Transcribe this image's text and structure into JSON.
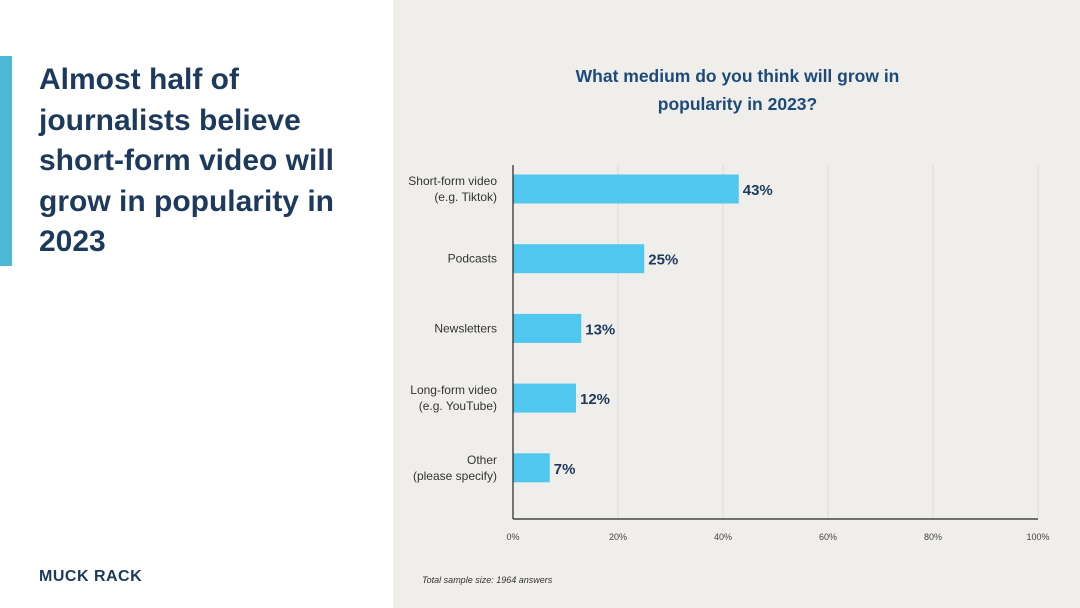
{
  "headline": "Almost half of journalists believe short-form video will grow in popularity in 2023",
  "logo": "MUCK RACK",
  "footnote": "Total sample size: 1964 answers",
  "colors": {
    "bar": "#4fc7ef",
    "accent": "#4cb8d4",
    "text": "#1d3a5c"
  },
  "chart_data": {
    "type": "bar",
    "orientation": "horizontal",
    "title": "What medium do you think will grow in popularity in 2023?",
    "categories": [
      [
        "Short-form video",
        "(e.g. Tiktok)"
      ],
      [
        "Podcasts"
      ],
      [
        "Newsletters"
      ],
      [
        "Long-form video",
        "(e.g. YouTube)"
      ],
      [
        "Other",
        "(please specify)"
      ]
    ],
    "values": [
      43,
      25,
      13,
      12,
      7
    ],
    "value_labels": [
      "43%",
      "25%",
      "13%",
      "12%",
      "7%"
    ],
    "xlim": [
      0,
      100
    ],
    "xticks": [
      0,
      20,
      40,
      60,
      80,
      100
    ],
    "xtick_labels": [
      "0%",
      "20%",
      "40%",
      "60%",
      "80%",
      "100%"
    ],
    "grid": true
  }
}
